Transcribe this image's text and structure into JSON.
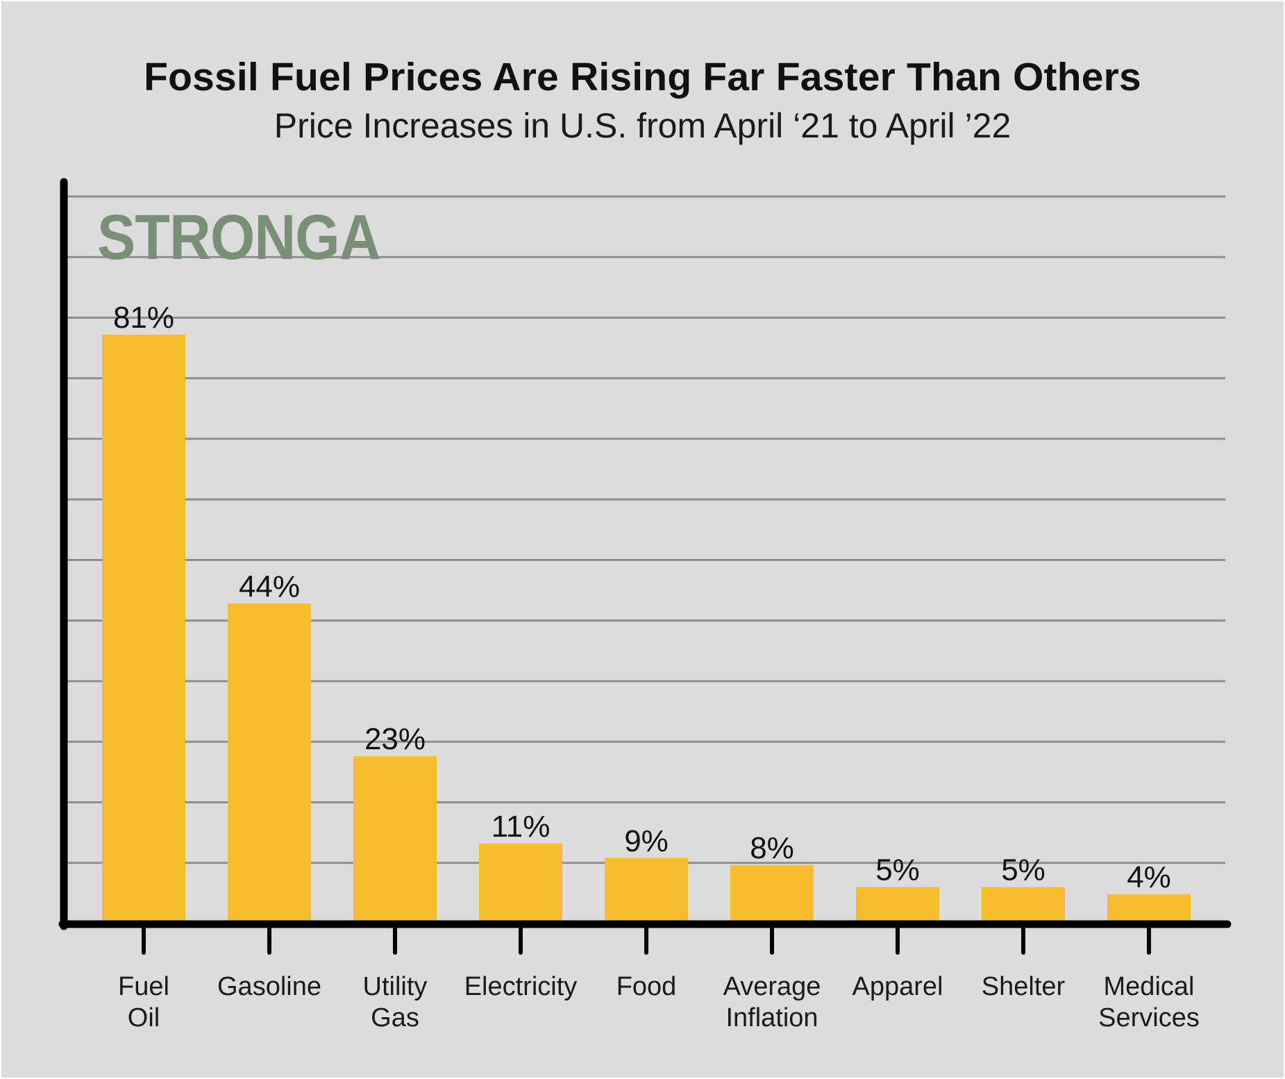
{
  "chart_data": {
    "type": "bar",
    "title": "Fossil Fuel Prices Are Rising Far Faster Than Others",
    "subtitle": "Price Increases in U.S. from April ‘21 to April ’22",
    "watermark": "STRONGA",
    "categories": [
      [
        "Fuel",
        "Oil"
      ],
      [
        "Gasoline"
      ],
      [
        "Utility",
        "Gas"
      ],
      [
        "Electricity"
      ],
      [
        "Food"
      ],
      [
        "Average",
        "Inflation"
      ],
      [
        "Apparel"
      ],
      [
        "Shelter"
      ],
      [
        "Medical",
        "Services"
      ]
    ],
    "values": [
      81,
      44,
      23,
      11,
      9,
      8,
      5,
      5,
      4
    ],
    "value_labels": [
      "81%",
      "44%",
      "23%",
      "11%",
      "9%",
      "8%",
      "5%",
      "5%",
      "4%"
    ],
    "ylim": [
      0,
      100
    ],
    "grid": true,
    "colors": {
      "bar": "#f7bb2e",
      "grid": "#8e8e8e",
      "axis": "#000000",
      "background": "#dcdcdc",
      "watermark": "#7a8f78"
    }
  }
}
